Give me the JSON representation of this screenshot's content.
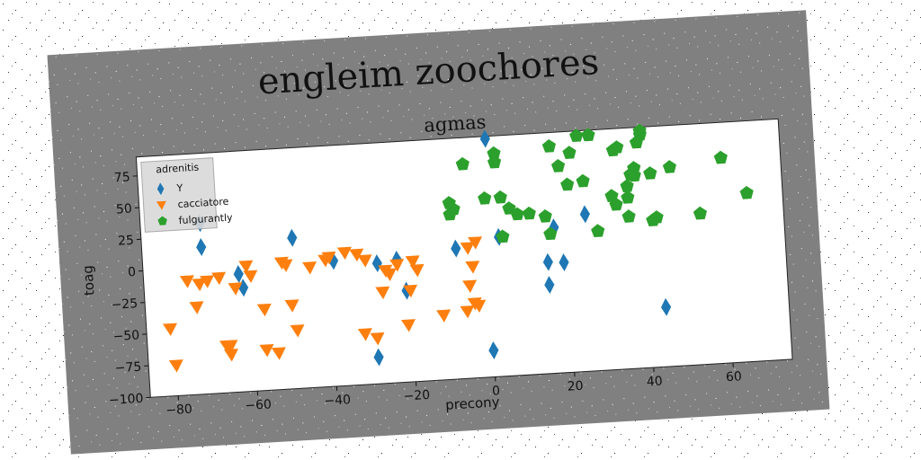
{
  "figure": {
    "suptitle": "engleim zoochores"
  },
  "chart_data": {
    "type": "scatter",
    "title": "agmas",
    "xlabel": "precony",
    "ylabel": "toag",
    "xlim": [
      -87,
      75
    ],
    "ylim": [
      -100,
      90
    ],
    "xticks": [
      -80,
      -60,
      -40,
      -20,
      0,
      20,
      40,
      60
    ],
    "yticks": [
      75,
      50,
      25,
      0,
      -25,
      -50,
      -75,
      -100
    ],
    "legend": {
      "title": "adrenitis",
      "placement": "top-left"
    },
    "series": [
      {
        "name": "Y",
        "marker": "thin_diamond",
        "color": "#1f77b4",
        "points": [
          [
            1,
            88
          ],
          [
            -72,
            16
          ],
          [
            -72,
            35
          ],
          [
            -49,
            19
          ],
          [
            -39,
            -1
          ],
          [
            -63,
            -7
          ],
          [
            -62,
            -18
          ],
          [
            -28,
            -5
          ],
          [
            -23,
            -3
          ],
          [
            -21,
            -28
          ],
          [
            -8,
            3
          ],
          [
            3,
            10
          ],
          [
            0,
            -79
          ],
          [
            -29,
            -79
          ],
          [
            17,
            15
          ],
          [
            15,
            -12
          ],
          [
            19,
            -13
          ],
          [
            15,
            -30
          ],
          [
            25,
            24
          ],
          [
            44,
            -53
          ]
        ]
      },
      {
        "name": "cacciatore",
        "marker": "triangle_down",
        "color": "#ff7f0e",
        "points": [
          [
            -81,
            -47
          ],
          [
            -80,
            -76
          ],
          [
            -76,
            -10
          ],
          [
            -74,
            -31
          ],
          [
            -73,
            -13
          ],
          [
            -71,
            -11
          ],
          [
            -68,
            -9
          ],
          [
            -67,
            -63
          ],
          [
            -66,
            -70
          ],
          [
            -66,
            -63
          ],
          [
            -64,
            -18
          ],
          [
            -61,
            -1
          ],
          [
            -60,
            -9
          ],
          [
            -57,
            -36
          ],
          [
            -57,
            -68
          ],
          [
            -54,
            -71
          ],
          [
            -52,
            0
          ],
          [
            -51,
            -2
          ],
          [
            -50,
            -34
          ],
          [
            -49,
            -54
          ],
          [
            -45,
            -5
          ],
          [
            -41,
            0
          ],
          [
            -40,
            2
          ],
          [
            -36,
            5
          ],
          [
            -33,
            3
          ],
          [
            -31,
            -2
          ],
          [
            -32,
            -60
          ],
          [
            -29,
            -64
          ],
          [
            -27,
            -28
          ],
          [
            -26,
            -11
          ],
          [
            -25,
            -14
          ],
          [
            -23,
            -7
          ],
          [
            -21,
            -55
          ],
          [
            -20,
            -28
          ],
          [
            -19,
            -5
          ],
          [
            -18,
            -12
          ],
          [
            -12,
            -49
          ],
          [
            -6,
            -47
          ],
          [
            -5,
            -27
          ],
          [
            -4,
            -12
          ],
          [
            -3,
            7
          ],
          [
            -3,
            -43
          ],
          [
            -4,
            -41
          ],
          [
            -5,
            3
          ]
        ]
      },
      {
        "name": "fulgurantly",
        "marker": "pentagon",
        "color": "#2ca02c",
        "points": [
          [
            -8,
            34
          ],
          [
            -9,
            30
          ],
          [
            -9,
            39
          ],
          [
            -5,
            69
          ],
          [
            0,
            41
          ],
          [
            3,
            69
          ],
          [
            3,
            76
          ],
          [
            4,
            10
          ],
          [
            4,
            41
          ],
          [
            6,
            32
          ],
          [
            8,
            27
          ],
          [
            11,
            27
          ],
          [
            15,
            24
          ],
          [
            16,
            10
          ],
          [
            17,
            79
          ],
          [
            19,
            63
          ],
          [
            21,
            48
          ],
          [
            22,
            73
          ],
          [
            24,
            86
          ],
          [
            25,
            50
          ],
          [
            27,
            86
          ],
          [
            28,
            10
          ],
          [
            32,
            37
          ],
          [
            33,
            30
          ],
          [
            34,
            75
          ],
          [
            36,
            20
          ],
          [
            36,
            44
          ],
          [
            38,
            52
          ],
          [
            38,
            58
          ],
          [
            39,
            78
          ],
          [
            40,
            84
          ],
          [
            40,
            87
          ],
          [
            42,
            16
          ],
          [
            43,
            18
          ],
          [
            42,
            53
          ],
          [
            47,
            57
          ],
          [
            54,
            19
          ],
          [
            60,
            62
          ],
          [
            66,
            33
          ],
          [
            36,
            35
          ],
          [
            33,
            73
          ],
          [
            37,
            53
          ]
        ]
      }
    ]
  }
}
